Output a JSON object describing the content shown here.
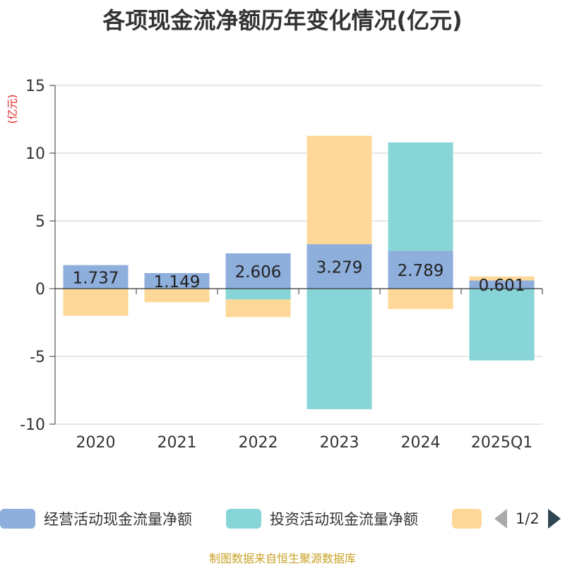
{
  "title": "各项现金流净额历年变化情况(亿元)",
  "unit_label": "(亿元)",
  "source": "制图数据来自恒生聚源数据库",
  "legend": {
    "items": [
      {
        "label": "经营活动现金流量净额",
        "color": "#8eaedb"
      },
      {
        "label": "投资活动现金流量净额",
        "color": "#88d5d8"
      },
      {
        "label": "",
        "color": "#fdd898"
      }
    ],
    "page": "1/2"
  },
  "chart_data": {
    "type": "bar",
    "stacked": true,
    "categories": [
      "2020",
      "2021",
      "2022",
      "2023",
      "2024",
      "2025Q1"
    ],
    "ylim": [
      -10,
      15
    ],
    "yticks": [
      -10,
      -5,
      0,
      5,
      10,
      15
    ],
    "grid": true,
    "legend_position": "bottom",
    "series": [
      {
        "name": "经营活动现金流量净额",
        "color": "#8eaedb",
        "values": [
          1.737,
          1.149,
          2.606,
          3.279,
          2.789,
          0.601
        ],
        "data_labels": [
          "1.737",
          "1.149",
          "2.606",
          "3.279",
          "2.789",
          "0.601"
        ]
      },
      {
        "name": "投资活动现金流量净额",
        "color": "#88d5d8",
        "values": [
          0,
          0,
          -0.8,
          -8.9,
          8.0,
          -5.3
        ]
      },
      {
        "color": "#fdd898",
        "values": [
          -2.0,
          -1.0,
          -1.3,
          8.0,
          -1.5,
          0.3
        ]
      }
    ]
  }
}
